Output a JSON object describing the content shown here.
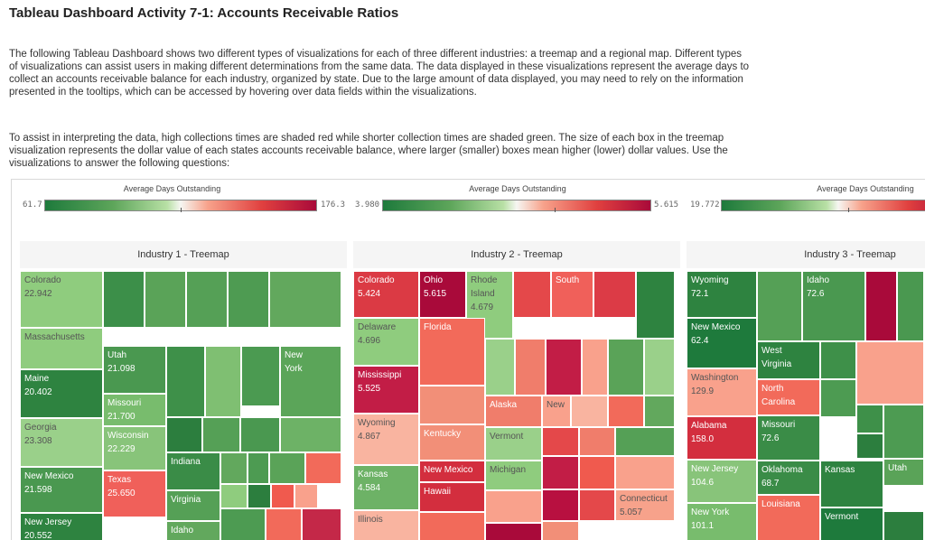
{
  "title": "Tableau Dashboard Activity 7-1: Accounts Receivable Ratios",
  "intro": "The following Tableau Dashboard shows two different types of visualizations for each of three different industries: a treemap and a regional map. Different types of visualizations can assist users in making different determinations from the same data. The data displayed in these visualizations represent the average days to collect an accounts receivable balance for each industry, organized by state. Due to the large amount of data displayed, you may need to rely on the information presented in the tooltips, which can be accessed by hovering over data fields within the visualizations.",
  "instructions": "To assist in interpreting the data, high collections times are shaded red while shorter collection times are shaded green. The size of each box in the treemap visualization represents the dollar value of each states accounts receivable balance, where larger (smaller) boxes mean higher (lower) dollar values.  Use the visualizations to answer the following questions:",
  "colors": {
    "dark_green": "#1e7a3c",
    "green": "#5da55a",
    "light_green": "#9ad08a",
    "dark_red": "#a90a3a",
    "red": "#e0403f",
    "salmon": "#f7a28b"
  },
  "legends": [
    {
      "title": "Average Days Outstanding",
      "min": "61.7",
      "max": "176.3"
    },
    {
      "title": "Average Days Outstanding",
      "min": "3.980",
      "max": "5.615"
    },
    {
      "title": "Average Days Outstanding",
      "min": "19.772",
      "max": ""
    }
  ],
  "panels": [
    {
      "title": "Industry 1 - Treemap",
      "cells": [
        {
          "label": "Colorado\n22.942",
          "color": "#8fcc7e"
        },
        {
          "label": "",
          "color": "#3c8f49"
        },
        {
          "label": "",
          "color": "#5aa358"
        },
        {
          "label": "",
          "color": "#55a056"
        },
        {
          "label": "",
          "color": "#4e9b52"
        },
        {
          "label": "",
          "color": "#62a85d"
        },
        {
          "label": "Massachusetts",
          "color": "#8fcc7e"
        },
        {
          "label": "Utah\n21.098",
          "color": "#4a9850"
        },
        {
          "label": "",
          "color": "#3e9049"
        },
        {
          "label": "",
          "color": "#7fbf72"
        },
        {
          "label": "New\nYork",
          "color": "#5ba559"
        },
        {
          "label": "",
          "color": "#4b9a51"
        },
        {
          "label": "Maine\n20.402",
          "color": "#2e8340"
        },
        {
          "label": "Missouri\n21.700",
          "color": "#78bc6d"
        },
        {
          "label": "",
          "color": "#2c7e3e"
        },
        {
          "label": "",
          "color": "#55a056"
        },
        {
          "label": "",
          "color": "#4a9850"
        },
        {
          "label": "",
          "color": "#6db266"
        },
        {
          "label": "Georgia\n23.308",
          "color": "#9ad08a"
        },
        {
          "label": "Wisconsin\n22.229",
          "color": "#88c47a"
        },
        {
          "label": "Indiana",
          "color": "#3a8c47"
        },
        {
          "label": "",
          "color": "#62a85d"
        },
        {
          "label": "",
          "color": "#4d9b52"
        },
        {
          "label": "",
          "color": "#5aa358"
        },
        {
          "label": "",
          "color": "#f26a5a"
        },
        {
          "label": "New Mexico\n21.598",
          "color": "#4a9850"
        },
        {
          "label": "Texas\n25.650",
          "color": "#f0605a"
        },
        {
          "label": "Virginia",
          "color": "#55a056"
        },
        {
          "label": "",
          "color": "#8fcc7e"
        },
        {
          "label": "",
          "color": "#2c7e3e"
        },
        {
          "label": "",
          "color": "#f05a4e"
        },
        {
          "label": "",
          "color": "#f9a18c"
        },
        {
          "label": "New Jersey\n20.552",
          "color": "#2e8340"
        },
        {
          "label": "Idaho",
          "color": "#62a85d"
        },
        {
          "label": "",
          "color": "#4d9b52"
        },
        {
          "label": "",
          "color": "#f26a5a"
        },
        {
          "label": "",
          "color": "#c42848"
        }
      ]
    },
    {
      "title": "Industry 2 - Treemap",
      "cells": [
        {
          "label": "Colorado\n5.424",
          "color": "#db3a44"
        },
        {
          "label": "Ohio\n5.615",
          "color": "#a90a3a"
        },
        {
          "label": "Rhode\nIsland\n4.679",
          "color": "#8fcc7e"
        },
        {
          "label": "",
          "color": "#e4484a"
        },
        {
          "label": "South",
          "color": "#f0605a"
        },
        {
          "label": "",
          "color": "#dc3b46"
        },
        {
          "label": "",
          "color": "#2e8340"
        },
        {
          "label": "Delaware\n4.696",
          "color": "#8fcc7e"
        },
        {
          "label": "Florida",
          "color": "#f26a5a"
        },
        {
          "label": "",
          "color": "#9ad08a"
        },
        {
          "label": "",
          "color": "#f07d6b"
        },
        {
          "label": "",
          "color": "#c21d46"
        },
        {
          "label": "",
          "color": "#f9a18c"
        },
        {
          "label": "",
          "color": "#5aa358"
        },
        {
          "label": "",
          "color": "#9ad08a"
        },
        {
          "label": "Mississippi\n5.525",
          "color": "#c21d46"
        },
        {
          "label": "",
          "color": "#f28f78"
        },
        {
          "label": "Alaska",
          "color": "#f07d6b"
        },
        {
          "label": "New",
          "color": "#f9a18c"
        },
        {
          "label": "",
          "color": "#f9b4a0"
        },
        {
          "label": "",
          "color": "#f26a5a"
        },
        {
          "label": "",
          "color": "#62a85d"
        },
        {
          "label": "Wyoming\n4.867",
          "color": "#f9b4a0"
        },
        {
          "label": "Kentucky",
          "color": "#f28f78"
        },
        {
          "label": "Vermont",
          "color": "#9ad08a"
        },
        {
          "label": "",
          "color": "#e4484a"
        },
        {
          "label": "",
          "color": "#f07d6b"
        },
        {
          "label": "",
          "color": "#55a056"
        },
        {
          "label": "New Mexico",
          "color": "#d32e3e"
        },
        {
          "label": "Kansas\n4.584",
          "color": "#6db266"
        },
        {
          "label": "Michigan",
          "color": "#8fcc7e"
        },
        {
          "label": "",
          "color": "#c21d46"
        },
        {
          "label": "",
          "color": "#f05a4e"
        },
        {
          "label": "",
          "color": "#f9a18c"
        },
        {
          "label": "Hawaii",
          "color": "#d32e3e"
        },
        {
          "label": "",
          "color": "#f9a18c"
        },
        {
          "label": "",
          "color": "#b81040"
        },
        {
          "label": "",
          "color": "#e4484a"
        },
        {
          "label": "Connecticut\n5.057",
          "color": "#f7a28b"
        },
        {
          "label": "Illinois",
          "color": "#f9b4a0"
        },
        {
          "label": "",
          "color": "#f26a5a"
        },
        {
          "label": "",
          "color": "#a90a3a"
        },
        {
          "label": "",
          "color": "#f28f78"
        }
      ]
    },
    {
      "title": "Industry 3 - Treemap",
      "cells": [
        {
          "label": "Wyoming\n72.1",
          "color": "#2e8340"
        },
        {
          "label": "",
          "color": "#55a056"
        },
        {
          "label": "Idaho\n72.6",
          "color": "#4a9850"
        },
        {
          "label": "",
          "color": "#a90a3a"
        },
        {
          "label": "",
          "color": "#4a9850"
        },
        {
          "label": "New Mexico\n62.4",
          "color": "#1e7a3c"
        },
        {
          "label": "West\nVirginia",
          "color": "#2e8340"
        },
        {
          "label": "",
          "color": "#3e9049"
        },
        {
          "label": "",
          "color": "#f9a18c"
        },
        {
          "label": "Washington\n129.9",
          "color": "#f9a18c"
        },
        {
          "label": "North\nCarolina",
          "color": "#f26a5a"
        },
        {
          "label": "",
          "color": "#4d9b52"
        },
        {
          "label": "",
          "color": "#3e9049"
        },
        {
          "label": "Alabama\n158.0",
          "color": "#d32e3e"
        },
        {
          "label": "Missouri\n72.6",
          "color": "#3a8c47"
        },
        {
          "label": "",
          "color": "#4d9b52"
        },
        {
          "label": "",
          "color": "#2c7e3e"
        },
        {
          "label": "Utah",
          "color": "#5aa358"
        },
        {
          "label": "New Jersey\n104.6",
          "color": "#88c47a"
        },
        {
          "label": "Oklahoma\n68.7",
          "color": "#3a8c47"
        },
        {
          "label": "Kansas",
          "color": "#2e8340"
        },
        {
          "label": "New York\n101.1",
          "color": "#78bc6d"
        },
        {
          "label": "Louisiana",
          "color": "#f26a5a"
        },
        {
          "label": "Vermont",
          "color": "#1e7a3c"
        },
        {
          "label": "",
          "color": "#2c7e3e"
        }
      ]
    }
  ]
}
